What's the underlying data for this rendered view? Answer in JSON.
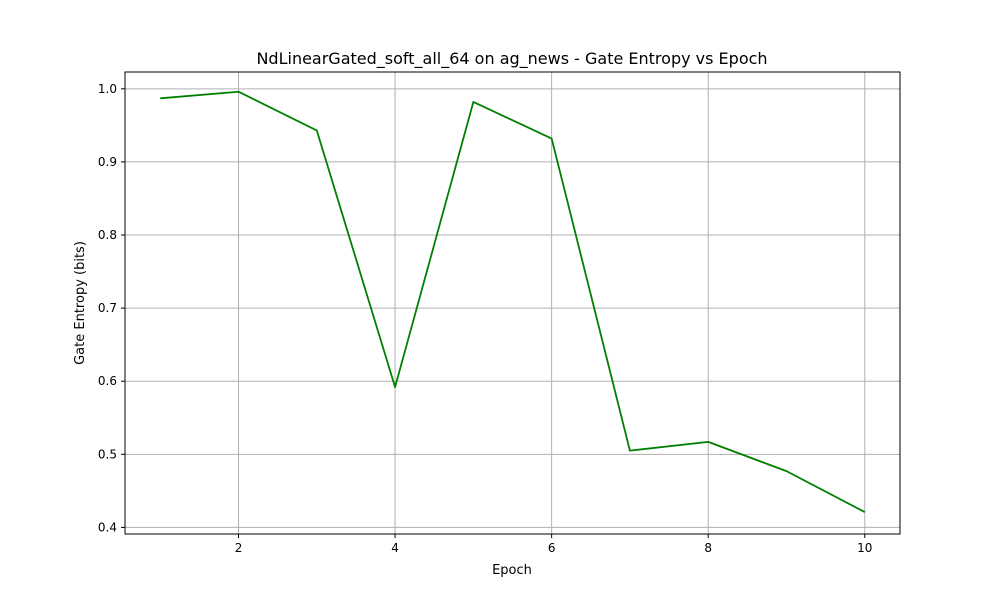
{
  "chart_data": {
    "type": "line",
    "title": "NdLinearGated_soft_all_64 on ag_news - Gate Entropy vs Epoch",
    "xlabel": "Epoch",
    "ylabel": "Gate Entropy (bits)",
    "xlim": [
      0.55,
      10.45
    ],
    "ylim": [
      0.391,
      1.023
    ],
    "xticks": [
      2,
      4,
      6,
      8,
      10
    ],
    "yticks": [
      0.4,
      0.5,
      0.6,
      0.7,
      0.8,
      0.9,
      1.0
    ],
    "xtick_labels": [
      "2",
      "4",
      "6",
      "8",
      "10"
    ],
    "ytick_labels": [
      "0.4",
      "0.5",
      "0.6",
      "0.7",
      "0.8",
      "0.9",
      "1.0"
    ],
    "grid": true,
    "legend": "none",
    "series": [
      {
        "color": "#008000",
        "x": [
          1,
          2,
          3,
          4,
          5,
          6,
          7,
          8,
          9,
          10
        ],
        "y": [
          0.987,
          0.996,
          0.943,
          0.592,
          0.982,
          0.932,
          0.505,
          0.517,
          0.477,
          0.421
        ]
      }
    ]
  }
}
